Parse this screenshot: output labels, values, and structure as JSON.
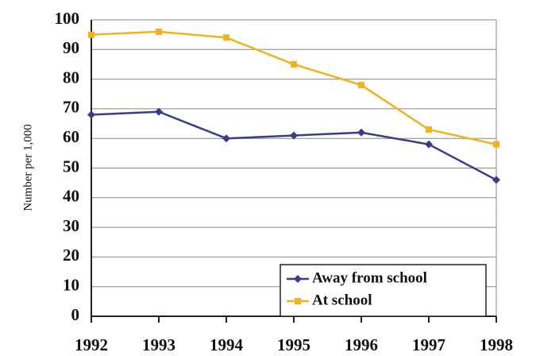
{
  "chart_data": {
    "type": "line",
    "y_label": "Number per 1,000",
    "x": [
      1992,
      1993,
      1994,
      1995,
      1996,
      1997,
      1998
    ],
    "series": [
      {
        "name": "Away from school",
        "color": "#3b3b8e",
        "marker": "diamond",
        "values": [
          68,
          69,
          60,
          61,
          62,
          58,
          46
        ]
      },
      {
        "name": "At school",
        "color": "#f2b21e",
        "marker": "square",
        "values": [
          95,
          96,
          94,
          85,
          78,
          63,
          58
        ]
      }
    ],
    "xlim": [
      1992,
      1998
    ],
    "xticks": [
      1992,
      1993,
      1994,
      1995,
      1996,
      1997,
      1998
    ],
    "ylim": [
      0,
      100
    ],
    "yticks": [
      0,
      10,
      20,
      30,
      40,
      50,
      60,
      70,
      80,
      90,
      100
    ],
    "grid": true,
    "legend": "lower right"
  }
}
